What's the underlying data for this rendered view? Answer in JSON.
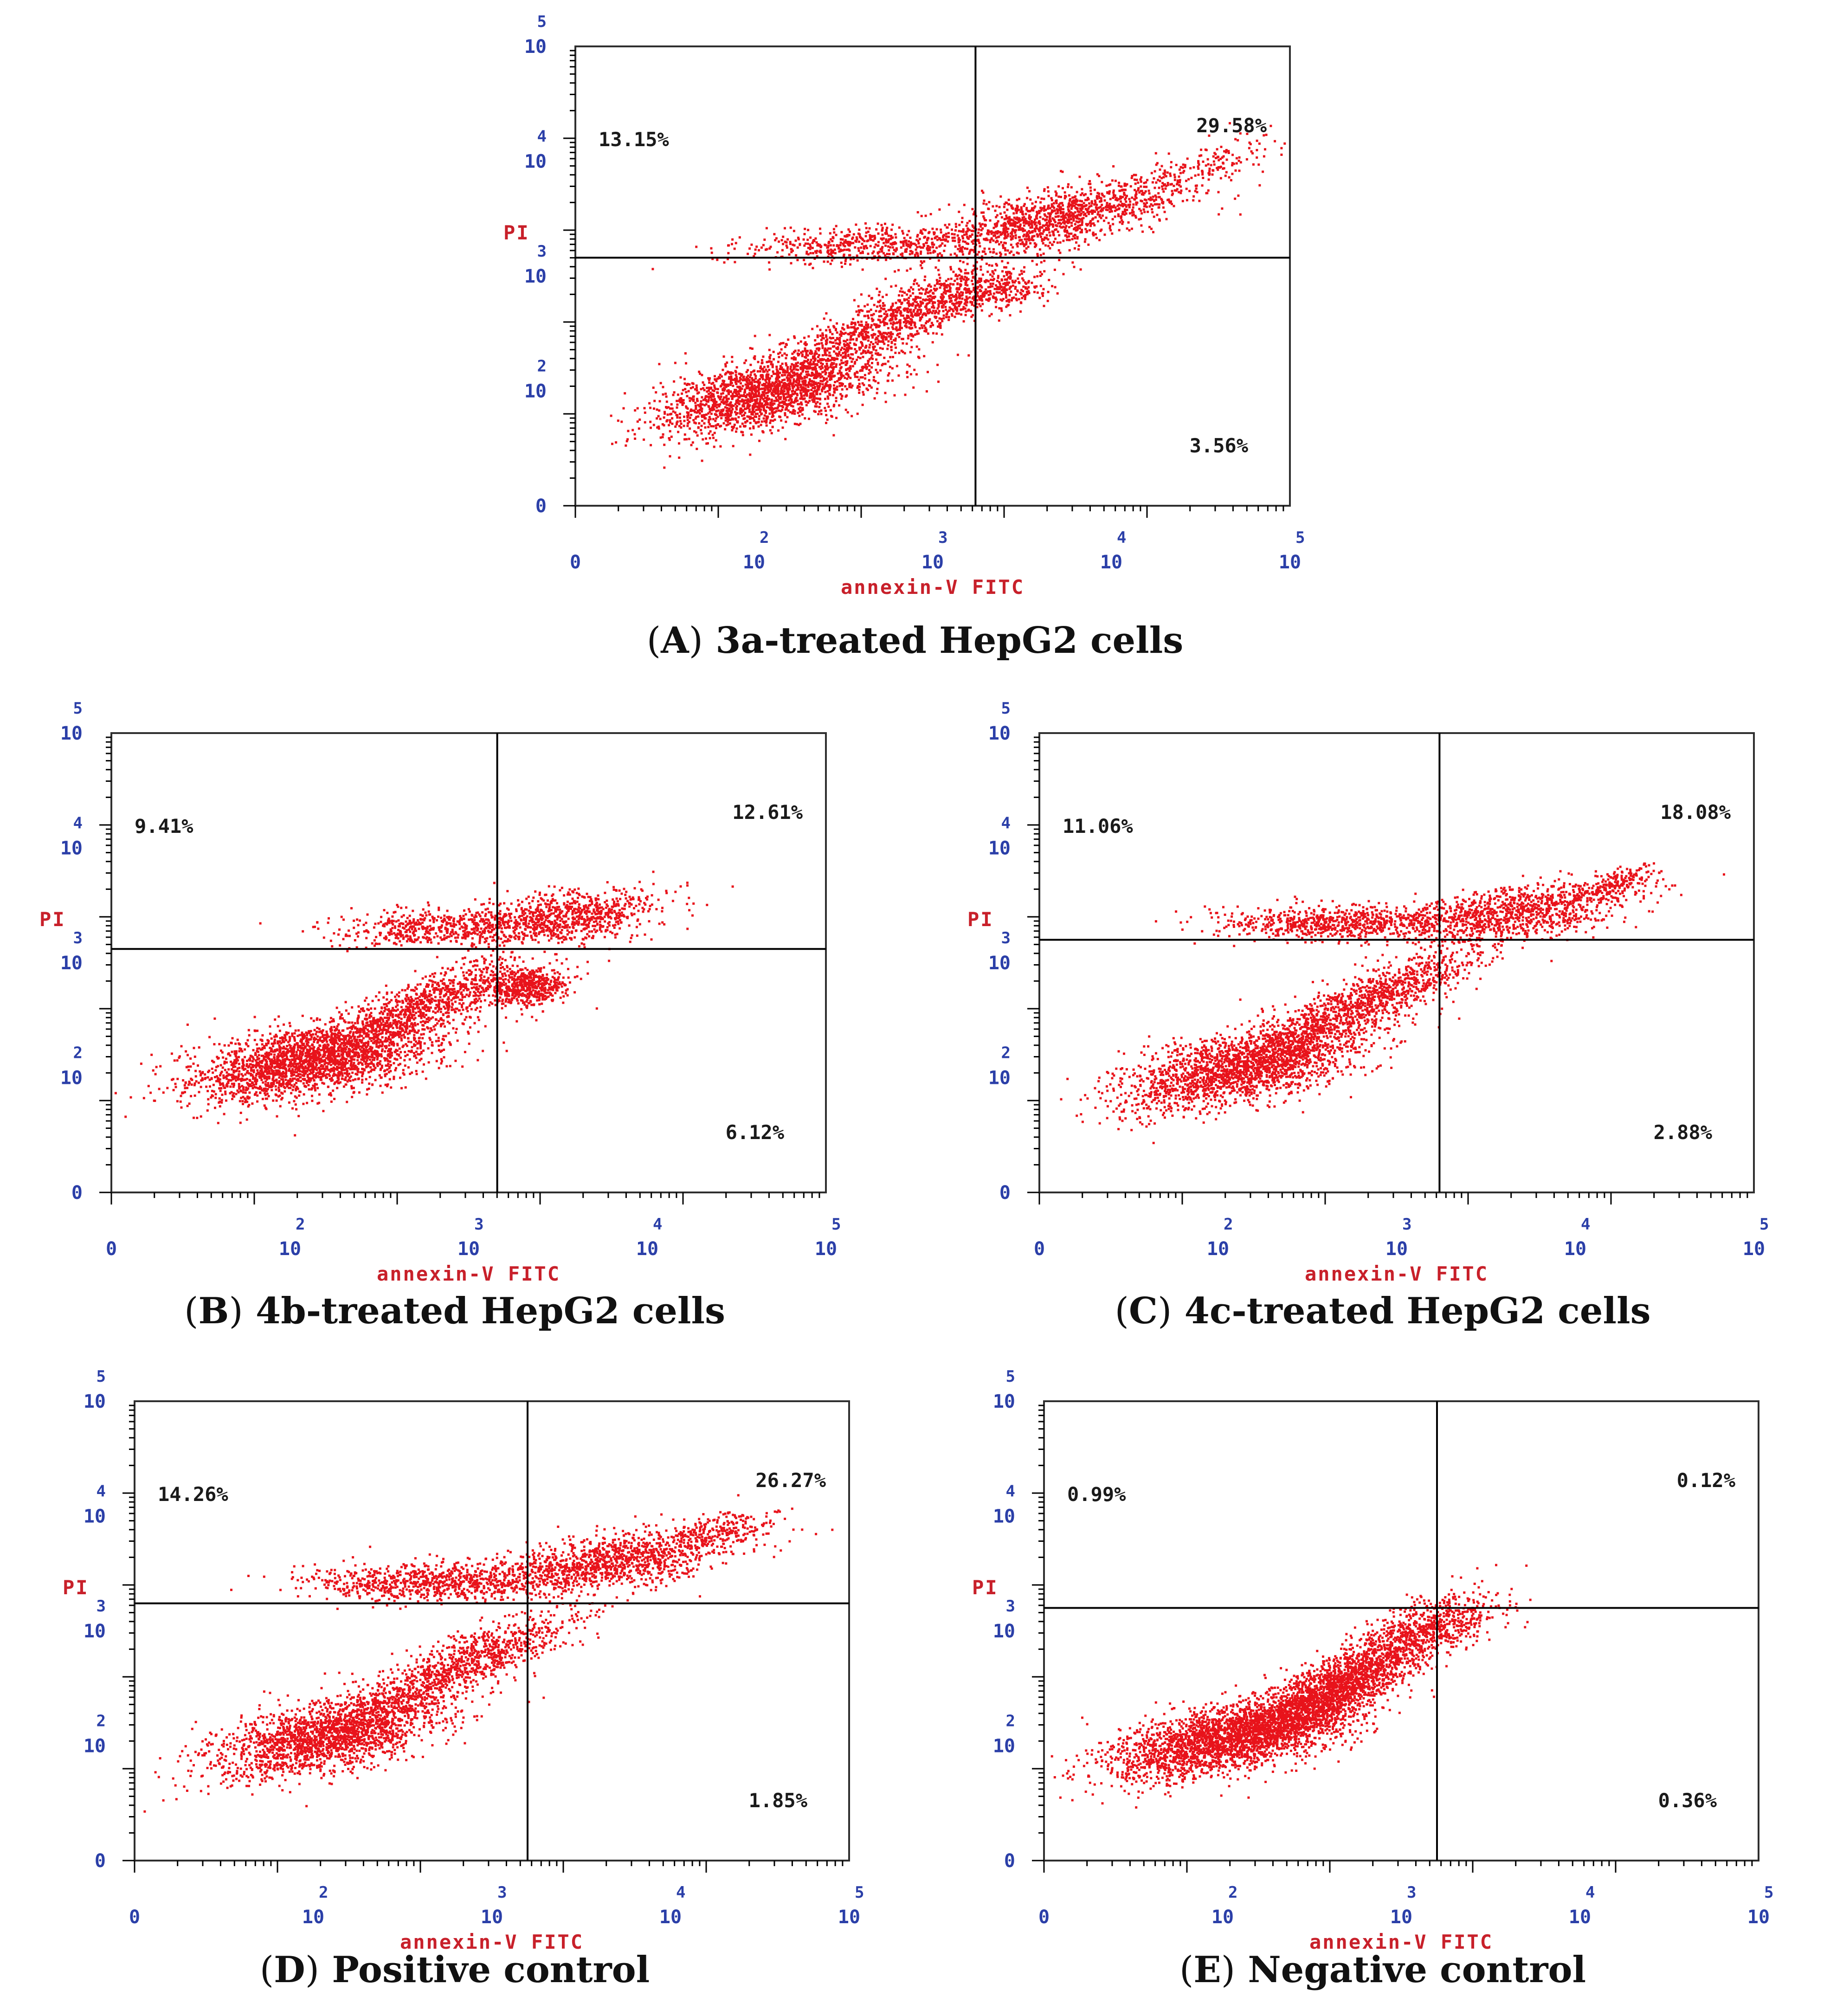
{
  "chart_data": [
    {
      "type": "scatter",
      "caption": {
        "letter": "A",
        "text": "3a-treated HepG2 cells"
      },
      "xlabel": "annexin-V FITC",
      "ylabel": "PI",
      "scale": "log",
      "xlim": [
        0,
        5
      ],
      "ylim": [
        0,
        5
      ],
      "x_ticks": [
        {
          "base": "0",
          "exp": ""
        },
        {
          "base": "10",
          "exp": "2"
        },
        {
          "base": "10",
          "exp": "3"
        },
        {
          "base": "10",
          "exp": "4"
        },
        {
          "base": "10",
          "exp": "5"
        }
      ],
      "y_ticks": [
        {
          "base": "0",
          "exp": ""
        },
        {
          "base": "10",
          "exp": "2"
        },
        {
          "base": "10",
          "exp": "3"
        },
        {
          "base": "10",
          "exp": "4"
        },
        {
          "base": "10",
          "exp": "5"
        }
      ],
      "quadrant_gate": {
        "x": 2.8,
        "y": 2.7
      },
      "quadrants": {
        "upper_left": "13.15%",
        "upper_right": "29.58%",
        "lower_right": "3.56%"
      },
      "populations": [
        {
          "cx": 1.35,
          "cy": 1.25,
          "sx": 0.4,
          "sy": 0.24,
          "rho": 0.6,
          "weight": 0.38
        },
        {
          "cx": 2.25,
          "cy": 2.05,
          "sx": 0.4,
          "sy": 0.3,
          "rho": 0.85,
          "weight": 0.2
        },
        {
          "cx": 3.35,
          "cy": 3.15,
          "sx": 0.48,
          "sy": 0.22,
          "rho": 0.7,
          "weight": 0.24
        },
        {
          "cx": 2.05,
          "cy": 2.85,
          "sx": 0.45,
          "sy": 0.1,
          "rho": 0.2,
          "weight": 0.1
        },
        {
          "cx": 2.95,
          "cy": 2.35,
          "sx": 0.18,
          "sy": 0.12,
          "rho": 0.2,
          "weight": 0.05
        },
        {
          "cx": 4.4,
          "cy": 3.7,
          "sx": 0.25,
          "sy": 0.18,
          "rho": 0.8,
          "weight": 0.03
        }
      ]
    },
    {
      "type": "scatter",
      "caption": {
        "letter": "B",
        "text": "4b-treated HepG2 cells"
      },
      "xlabel": "annexin-V FITC",
      "ylabel": "PI",
      "scale": "log",
      "xlim": [
        0,
        5
      ],
      "ylim": [
        0,
        5
      ],
      "x_ticks": [
        {
          "base": "0",
          "exp": ""
        },
        {
          "base": "10",
          "exp": "2"
        },
        {
          "base": "10",
          "exp": "3"
        },
        {
          "base": "10",
          "exp": "4"
        },
        {
          "base": "10",
          "exp": "5"
        }
      ],
      "y_ticks": [
        {
          "base": "0",
          "exp": ""
        },
        {
          "base": "10",
          "exp": "2"
        },
        {
          "base": "10",
          "exp": "3"
        },
        {
          "base": "10",
          "exp": "4"
        },
        {
          "base": "10",
          "exp": "5"
        }
      ],
      "quadrant_gate": {
        "x": 2.7,
        "y": 2.65
      },
      "quadrants": {
        "upper_left": "9.41%",
        "upper_right": "12.61%",
        "lower_right": "6.12%"
      },
      "populations": [
        {
          "cx": 1.4,
          "cy": 1.45,
          "sx": 0.42,
          "sy": 0.22,
          "rho": 0.5,
          "weight": 0.46
        },
        {
          "cx": 2.2,
          "cy": 2.05,
          "sx": 0.35,
          "sy": 0.25,
          "rho": 0.8,
          "weight": 0.18
        },
        {
          "cx": 3.15,
          "cy": 3.0,
          "sx": 0.32,
          "sy": 0.15,
          "rho": 0.4,
          "weight": 0.16
        },
        {
          "cx": 2.25,
          "cy": 2.9,
          "sx": 0.35,
          "sy": 0.1,
          "rho": 0.1,
          "weight": 0.1
        },
        {
          "cx": 2.9,
          "cy": 2.25,
          "sx": 0.15,
          "sy": 0.1,
          "rho": 0.1,
          "weight": 0.1
        }
      ]
    },
    {
      "type": "scatter",
      "caption": {
        "letter": "C",
        "text": "4c-treated HepG2 cells"
      },
      "xlabel": "annexin-V FITC",
      "ylabel": "PI",
      "scale": "log",
      "xlim": [
        0,
        5
      ],
      "ylim": [
        0,
        5
      ],
      "x_ticks": [
        {
          "base": "0",
          "exp": ""
        },
        {
          "base": "10",
          "exp": "2"
        },
        {
          "base": "10",
          "exp": "3"
        },
        {
          "base": "10",
          "exp": "4"
        },
        {
          "base": "10",
          "exp": "5"
        }
      ],
      "y_ticks": [
        {
          "base": "0",
          "exp": ""
        },
        {
          "base": "10",
          "exp": "2"
        },
        {
          "base": "10",
          "exp": "3"
        },
        {
          "base": "10",
          "exp": "4"
        },
        {
          "base": "10",
          "exp": "5"
        }
      ],
      "quadrant_gate": {
        "x": 2.8,
        "y": 2.75
      },
      "quadrants": {
        "upper_left": "11.06%",
        "upper_right": "18.08%",
        "lower_right": "2.88%"
      },
      "populations": [
        {
          "cx": 1.45,
          "cy": 1.4,
          "sx": 0.42,
          "sy": 0.24,
          "rho": 0.6,
          "weight": 0.42
        },
        {
          "cx": 2.3,
          "cy": 2.1,
          "sx": 0.38,
          "sy": 0.28,
          "rho": 0.85,
          "weight": 0.2
        },
        {
          "cx": 3.3,
          "cy": 3.05,
          "sx": 0.4,
          "sy": 0.16,
          "rho": 0.5,
          "weight": 0.2
        },
        {
          "cx": 2.1,
          "cy": 2.95,
          "sx": 0.42,
          "sy": 0.09,
          "rho": 0.1,
          "weight": 0.14
        },
        {
          "cx": 4.0,
          "cy": 3.35,
          "sx": 0.15,
          "sy": 0.1,
          "rho": 0.6,
          "weight": 0.04
        }
      ]
    },
    {
      "type": "scatter",
      "caption": {
        "letter": "D",
        "text": "Positive control"
      },
      "xlabel": "annexin-V FITC",
      "ylabel": "PI",
      "scale": "log",
      "xlim": [
        0,
        5
      ],
      "ylim": [
        0,
        5
      ],
      "x_ticks": [
        {
          "base": "0",
          "exp": ""
        },
        {
          "base": "10",
          "exp": "2"
        },
        {
          "base": "10",
          "exp": "3"
        },
        {
          "base": "10",
          "exp": "4"
        },
        {
          "base": "10",
          "exp": "5"
        }
      ],
      "y_ticks": [
        {
          "base": "0",
          "exp": ""
        },
        {
          "base": "10",
          "exp": "2"
        },
        {
          "base": "10",
          "exp": "3"
        },
        {
          "base": "10",
          "exp": "4"
        },
        {
          "base": "10",
          "exp": "5"
        }
      ],
      "quadrant_gate": {
        "x": 2.75,
        "y": 2.8
      },
      "quadrants": {
        "upper_left": "14.26%",
        "upper_right": "26.27%",
        "lower_right": "1.85%"
      },
      "populations": [
        {
          "cx": 1.4,
          "cy": 1.4,
          "sx": 0.42,
          "sy": 0.25,
          "rho": 0.6,
          "weight": 0.4
        },
        {
          "cx": 2.3,
          "cy": 2.15,
          "sx": 0.38,
          "sy": 0.28,
          "rho": 0.85,
          "weight": 0.18
        },
        {
          "cx": 3.3,
          "cy": 3.25,
          "sx": 0.45,
          "sy": 0.18,
          "rho": 0.6,
          "weight": 0.24
        },
        {
          "cx": 2.05,
          "cy": 3.05,
          "sx": 0.4,
          "sy": 0.1,
          "rho": 0.1,
          "weight": 0.14
        },
        {
          "cx": 4.1,
          "cy": 3.6,
          "sx": 0.2,
          "sy": 0.1,
          "rho": 0.5,
          "weight": 0.04
        }
      ]
    },
    {
      "type": "scatter",
      "caption": {
        "letter": "E",
        "text": "Negative control"
      },
      "xlabel": "annexin-V FITC",
      "ylabel": "PI",
      "scale": "log",
      "xlim": [
        0,
        5
      ],
      "ylim": [
        0,
        5
      ],
      "x_ticks": [
        {
          "base": "0",
          "exp": ""
        },
        {
          "base": "10",
          "exp": "2"
        },
        {
          "base": "10",
          "exp": "3"
        },
        {
          "base": "10",
          "exp": "4"
        },
        {
          "base": "10",
          "exp": "5"
        }
      ],
      "y_ticks": [
        {
          "base": "0",
          "exp": ""
        },
        {
          "base": "10",
          "exp": "2"
        },
        {
          "base": "10",
          "exp": "3"
        },
        {
          "base": "10",
          "exp": "4"
        },
        {
          "base": "10",
          "exp": "5"
        }
      ],
      "quadrant_gate": {
        "x": 2.75,
        "y": 2.75
      },
      "quadrants": {
        "upper_left": "0.99%",
        "upper_right": "0.12%",
        "lower_right": "0.36%"
      },
      "populations": [
        {
          "cx": 1.3,
          "cy": 1.35,
          "sx": 0.42,
          "sy": 0.22,
          "rho": 0.6,
          "weight": 0.5
        },
        {
          "cx": 2.05,
          "cy": 1.9,
          "sx": 0.32,
          "sy": 0.3,
          "rho": 0.8,
          "weight": 0.4
        },
        {
          "cx": 2.75,
          "cy": 2.6,
          "sx": 0.22,
          "sy": 0.18,
          "rho": 0.5,
          "weight": 0.1
        }
      ]
    }
  ]
}
